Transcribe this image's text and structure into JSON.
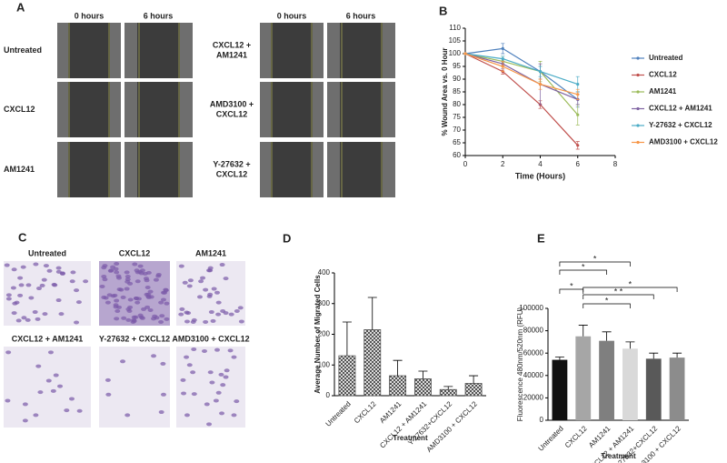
{
  "panel_labels": [
    "A",
    "B",
    "C",
    "D",
    "E"
  ],
  "panel_a": {
    "left": {
      "headers": [
        "0 hours",
        "6 hours"
      ],
      "rows": [
        "Untreated",
        "CXCL12",
        "AM1241"
      ]
    },
    "right": {
      "headers": [
        "0 hours",
        "6 hours"
      ],
      "rows": [
        "CXCL12 + AM1241",
        "AMD3100 + CXCL12",
        "Y-27632 + CXCL12"
      ]
    }
  },
  "panel_c": {
    "labels": [
      "Untreated",
      "CXCL12",
      "AM1241",
      "CXCL12 + AM1241",
      "Y-27632 + CXCL12",
      "AMD3100 + CXCL12"
    ]
  },
  "chart_data": [
    {
      "type": "line",
      "y_label": "% Wound Area vs. 0 Hour",
      "x_label": "Time (Hours)",
      "x": [
        0,
        2,
        4,
        6
      ],
      "xlim": [
        0,
        8
      ],
      "xticks": [
        0,
        2,
        4,
        6,
        8
      ],
      "ylim": [
        60,
        110
      ],
      "yticks": [
        60,
        65,
        70,
        75,
        80,
        85,
        90,
        95,
        100,
        105,
        110
      ],
      "series": [
        {
          "name": "Untreated",
          "color": "#4f81bd",
          "values": [
            100,
            102,
            93,
            82
          ],
          "errors": [
            0,
            2,
            3,
            3
          ]
        },
        {
          "name": "CXCL12",
          "color": "#c0504d",
          "values": [
            100,
            93,
            80,
            64
          ],
          "errors": [
            0,
            1,
            1.5,
            1.5
          ]
        },
        {
          "name": "AM1241",
          "color": "#9bbb59",
          "values": [
            100,
            97,
            93,
            76
          ],
          "errors": [
            0,
            2,
            4,
            4
          ]
        },
        {
          "name": "CXCL12 + AM1241",
          "color": "#8064a2",
          "values": [
            100,
            96,
            88,
            82
          ],
          "errors": [
            0,
            2,
            8,
            2
          ]
        },
        {
          "name": "Y-27632 + CXCL12",
          "color": "#4bacc6",
          "values": [
            100,
            98,
            93,
            88
          ],
          "errors": [
            0,
            1,
            2,
            3
          ]
        },
        {
          "name": "AMD3100 + CXCL12",
          "color": "#f79646",
          "values": [
            100,
            95,
            88,
            84
          ],
          "errors": [
            0,
            2,
            2,
            2
          ]
        }
      ]
    },
    {
      "type": "bar",
      "y_label": "Average  Number of Migrated Cells",
      "x_label": "Treatment",
      "categories": [
        "Untreated",
        "CXCL12",
        "AM1241",
        "CXCL12 + AM1241",
        "Y-27632+CXCL12",
        "AMD3100 + CXCL12"
      ],
      "values": [
        130,
        215,
        65,
        55,
        20,
        40
      ],
      "errors": [
        110,
        105,
        50,
        25,
        10,
        25
      ],
      "color": "#555555",
      "ylim": [
        0,
        400
      ],
      "yticks": [
        0,
        100,
        200,
        300,
        400
      ]
    },
    {
      "type": "bar",
      "y_label": "Fluorescence 480nm/520nm (RFU)",
      "x_label": "Treatment",
      "categories": [
        "Untreated",
        "CXCL12",
        "AM1241",
        "CXCL12 + AM1241",
        "Y-27632+CXCL12",
        "AMD3100 + CXCL12"
      ],
      "values": [
        54000,
        75000,
        71000,
        64000,
        55000,
        56000
      ],
      "errors": [
        2500,
        10000,
        8000,
        6000,
        5000,
        4000
      ],
      "colors": [
        "#111111",
        "#a6a6a6",
        "#7f7f7f",
        "#d9d9d9",
        "#595959",
        "#8c8c8c"
      ],
      "ylim": [
        0,
        100000
      ],
      "yticks": [
        0,
        20000,
        40000,
        60000,
        80000,
        100000
      ],
      "significance": [
        "*",
        "*",
        "*",
        "*",
        "* *",
        "*"
      ]
    }
  ]
}
